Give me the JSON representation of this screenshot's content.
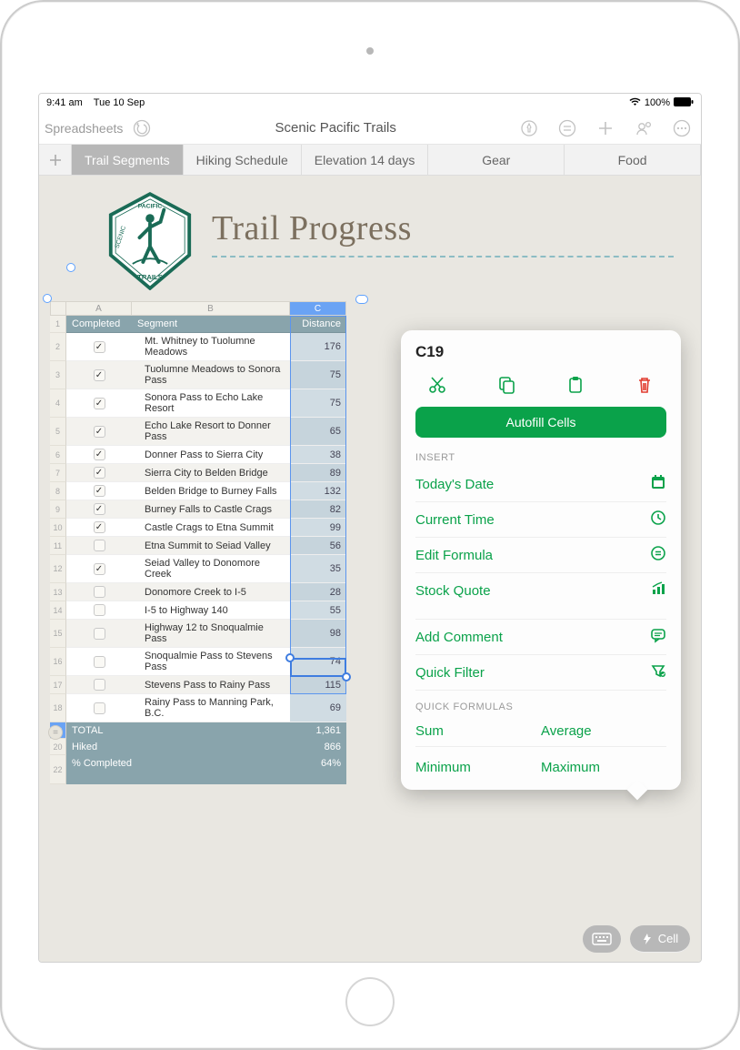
{
  "status": {
    "time": "9:41 am",
    "date": "Tue 10 Sep",
    "battery": "100%"
  },
  "toolbar": {
    "back": "Spreadsheets",
    "title": "Scenic Pacific Trails"
  },
  "tabs": [
    "Trail Segments",
    "Hiking Schedule",
    "Elevation 14 days",
    "Gear",
    "Food"
  ],
  "doc": {
    "title": "Trail Progress",
    "logo_top": "SCENIC",
    "logo_mid": "PACIFIC",
    "logo_bot": "TRAILS",
    "logo_colors": {
      "border": "#1a6b56",
      "fill": "#ffffff",
      "figure": "#1a6b56",
      "text": "#1a6b56"
    }
  },
  "columns": [
    "A",
    "B",
    "C"
  ],
  "headers": {
    "a": "Completed",
    "b": "Segment",
    "c": "Distance"
  },
  "rows": [
    {
      "n": 2,
      "done": true,
      "seg": "Mt. Whitney to Tuolumne Meadows",
      "dist": "176"
    },
    {
      "n": 3,
      "done": true,
      "seg": "Tuolumne Meadows to Sonora Pass",
      "dist": "75"
    },
    {
      "n": 4,
      "done": true,
      "seg": "Sonora Pass to Echo Lake Resort",
      "dist": "75"
    },
    {
      "n": 5,
      "done": true,
      "seg": "Echo Lake Resort to Donner Pass",
      "dist": "65"
    },
    {
      "n": 6,
      "done": true,
      "seg": "Donner Pass to Sierra City",
      "dist": "38"
    },
    {
      "n": 7,
      "done": true,
      "seg": "Sierra City to Belden Bridge",
      "dist": "89"
    },
    {
      "n": 8,
      "done": true,
      "seg": "Belden Bridge to Burney Falls",
      "dist": "132"
    },
    {
      "n": 9,
      "done": true,
      "seg": "Burney Falls to Castle Crags",
      "dist": "82"
    },
    {
      "n": 10,
      "done": true,
      "seg": "Castle Crags to Etna Summit",
      "dist": "99"
    },
    {
      "n": 11,
      "done": false,
      "seg": "Etna Summit to Seiad Valley",
      "dist": "56"
    },
    {
      "n": 12,
      "done": true,
      "seg": "Seiad Valley to Donomore Creek",
      "dist": "35"
    },
    {
      "n": 13,
      "done": false,
      "seg": "Donomore Creek to I-5",
      "dist": "28"
    },
    {
      "n": 14,
      "done": false,
      "seg": "I-5 to Highway 140",
      "dist": "55"
    },
    {
      "n": 15,
      "done": false,
      "seg": "Highway 12 to Snoqualmie Pass",
      "dist": "98"
    },
    {
      "n": 16,
      "done": false,
      "seg": "Snoqualmie Pass to Stevens Pass",
      "dist": "74"
    },
    {
      "n": 17,
      "done": false,
      "seg": "Stevens Pass to Rainy Pass",
      "dist": "115"
    },
    {
      "n": 18,
      "done": false,
      "seg": "Rainy Pass to Manning Park, B.C.",
      "dist": "69"
    }
  ],
  "footers": [
    {
      "n": 19,
      "label": "TOTAL",
      "val": "1,361",
      "sel": true
    },
    {
      "n": 20,
      "label": "Hiked",
      "val": "866"
    },
    {
      "n": 22,
      "label": "% Completed",
      "val": "64%"
    }
  ],
  "popover": {
    "cell_ref": "C19",
    "autofill": "Autofill Cells",
    "section_insert": "INSERT",
    "items": [
      {
        "label": "Today's Date",
        "icon": "calendar"
      },
      {
        "label": "Current Time",
        "icon": "clock"
      },
      {
        "label": "Edit Formula",
        "icon": "equals"
      },
      {
        "label": "Stock Quote",
        "icon": "chart"
      }
    ],
    "items2": [
      {
        "label": "Add Comment",
        "icon": "comment"
      },
      {
        "label": "Quick Filter",
        "icon": "filter"
      }
    ],
    "section_qf": "QUICK FORMULAS",
    "quick": [
      "Sum",
      "Average",
      "Minimum",
      "Maximum"
    ],
    "accent": "#0aa24a",
    "trash": "#e23b2e"
  },
  "bottom": {
    "cell": "Cell"
  },
  "style": {
    "canvas_bg": "#e9e7e1",
    "header_bg": "#89a4ac",
    "dist_bg": "#d0dce3",
    "select_blue": "#5b95ee"
  }
}
